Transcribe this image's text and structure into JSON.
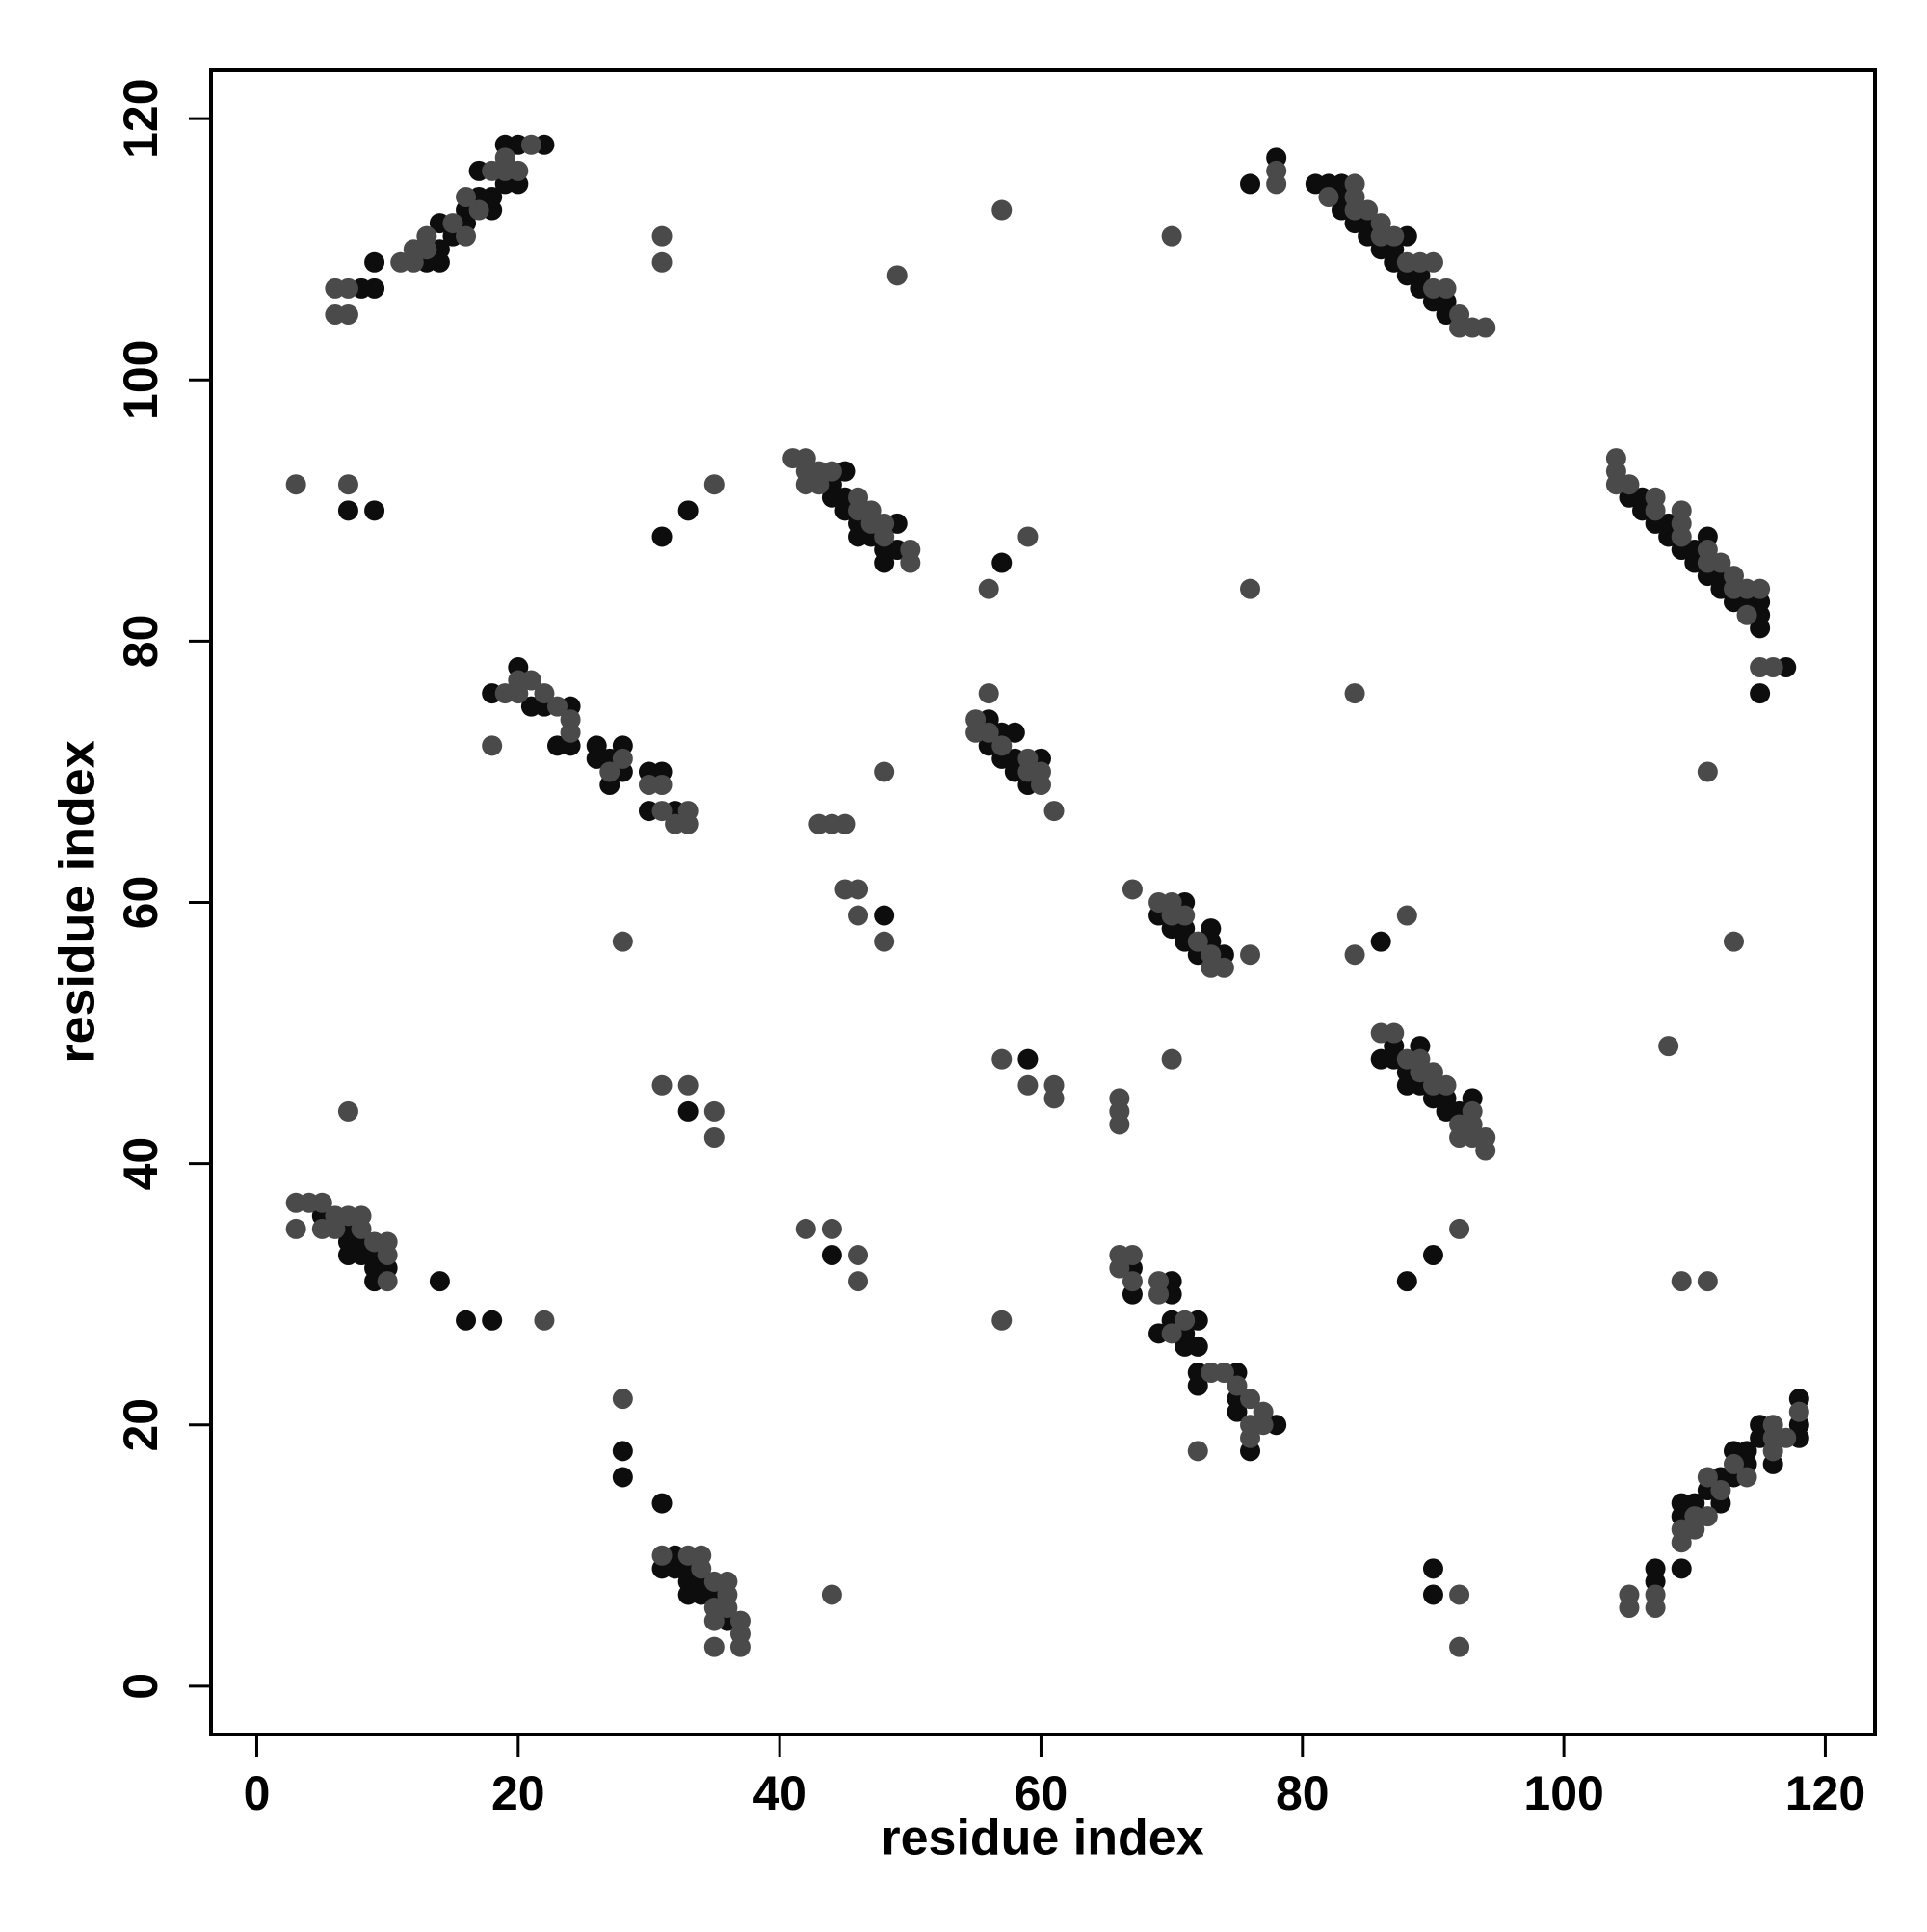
{
  "chart_data": {
    "type": "scatter",
    "x_label": "residue index",
    "y_label": "residue index",
    "xlim": [
      -3.5,
      123.8
    ],
    "ylim": [
      -3.7,
      123.7
    ],
    "xticks": [
      0,
      20,
      40,
      60,
      80,
      100,
      120
    ],
    "yticks": [
      0,
      20,
      40,
      60,
      80,
      100,
      120
    ],
    "series": [
      {
        "color": "#0d0d0d",
        "x": [
          8,
          9,
          9,
          13,
          14,
          14,
          14,
          15,
          16,
          16,
          17,
          17,
          18,
          18,
          19,
          19,
          20,
          20,
          22,
          81,
          82,
          83,
          83,
          83,
          84,
          85,
          85,
          86,
          87,
          87,
          88,
          88,
          89,
          89,
          90,
          91,
          91,
          76,
          78,
          44,
          44,
          45,
          45,
          46,
          46,
          47,
          48,
          48,
          49,
          49,
          45,
          18,
          20,
          21,
          22,
          23,
          24,
          24,
          26,
          26,
          27,
          27,
          28,
          28,
          30,
          30,
          31,
          32,
          56,
          56,
          57,
          57,
          58,
          58,
          58,
          59,
          60,
          5,
          7,
          7,
          7,
          8,
          8,
          9,
          9,
          9,
          10,
          7,
          9,
          31,
          33,
          57,
          14,
          16,
          18,
          33,
          48,
          107,
          107,
          109,
          109,
          109,
          110,
          112,
          111,
          112,
          113,
          114,
          116,
          113,
          114,
          115,
          118,
          115,
          118,
          118,
          115,
          115,
          115,
          114,
          113,
          112,
          112,
          111,
          110,
          110,
          109,
          111,
          108,
          108,
          107,
          106,
          106,
          105,
          115,
          117,
          92,
          91,
          91,
          90,
          89,
          88,
          88,
          87,
          86,
          89,
          87,
          93,
          76,
          78,
          75,
          75,
          72,
          72,
          75,
          72,
          71,
          71,
          69,
          72,
          70,
          70,
          67,
          70,
          67,
          74,
          72,
          73,
          71,
          73,
          71,
          70,
          69,
          71,
          36,
          35,
          34,
          33,
          34,
          33,
          33,
          32,
          31,
          32,
          90,
          90,
          88,
          90,
          86,
          31,
          28,
          28,
          44,
          59
        ],
        "values": [
          107,
          107,
          109,
          109,
          109,
          110,
          112,
          111,
          112,
          113,
          114,
          116,
          113,
          114,
          115,
          118,
          115,
          118,
          118,
          115,
          115,
          115,
          114,
          113,
          112,
          112,
          111,
          110,
          110,
          109,
          111,
          108,
          108,
          107,
          106,
          106,
          105,
          115,
          117,
          92,
          91,
          91,
          90,
          89,
          88,
          88,
          87,
          86,
          89,
          87,
          93,
          76,
          78,
          75,
          75,
          72,
          72,
          75,
          72,
          71,
          71,
          69,
          72,
          70,
          70,
          67,
          70,
          67,
          74,
          72,
          73,
          71,
          73,
          71,
          70,
          69,
          71,
          36,
          35,
          34,
          33,
          34,
          33,
          33,
          32,
          31,
          32,
          90,
          90,
          88,
          90,
          86,
          31,
          28,
          28,
          44,
          59,
          8,
          9,
          9,
          13,
          14,
          14,
          14,
          15,
          16,
          16,
          17,
          17,
          18,
          18,
          19,
          19,
          20,
          20,
          22,
          81,
          82,
          83,
          83,
          83,
          84,
          85,
          85,
          86,
          87,
          87,
          88,
          88,
          89,
          89,
          90,
          91,
          91,
          76,
          78,
          44,
          44,
          45,
          45,
          46,
          46,
          47,
          48,
          48,
          49,
          49,
          45,
          18,
          20,
          21,
          22,
          23,
          24,
          24,
          26,
          26,
          27,
          27,
          28,
          28,
          30,
          30,
          31,
          32,
          56,
          56,
          57,
          57,
          58,
          58,
          58,
          59,
          60,
          5,
          7,
          7,
          7,
          8,
          8,
          9,
          9,
          9,
          10,
          7,
          9,
          31,
          33,
          57,
          14,
          16,
          18,
          33,
          48
        ]
      },
      {
        "color": "#4a4a4a",
        "x": [
          6,
          7,
          6,
          7,
          11,
          12,
          12,
          13,
          13,
          15,
          16,
          16,
          17,
          18,
          19,
          19,
          20,
          21,
          84,
          82,
          84,
          84,
          85,
          86,
          86,
          87,
          88,
          89,
          90,
          90,
          91,
          92,
          92,
          93,
          94,
          78,
          78,
          41,
          42,
          42,
          43,
          44,
          42,
          43,
          46,
          46,
          47,
          47,
          48,
          48,
          50,
          50,
          19,
          20,
          20,
          21,
          22,
          23,
          24,
          24,
          27,
          28,
          30,
          31,
          31,
          32,
          33,
          33,
          18,
          55,
          55,
          56,
          56,
          57,
          59,
          59,
          60,
          60,
          61,
          3,
          4,
          5,
          3,
          5,
          6,
          6,
          7,
          8,
          8,
          9,
          10,
          10,
          10,
          3,
          7,
          35,
          31,
          31,
          49,
          57,
          70,
          56,
          59,
          76,
          7,
          22,
          28,
          31,
          33,
          35,
          35,
          43,
          44,
          45,
          45,
          46,
          46,
          48,
          48,
          105,
          105,
          107,
          107,
          109,
          109,
          110,
          110,
          111,
          112,
          111,
          114,
          113,
          116,
          116,
          117,
          116,
          118,
          115,
          114,
          114,
          113,
          113,
          112,
          111,
          111,
          109,
          109,
          109,
          107,
          107,
          105,
          104,
          104,
          104,
          115,
          116,
          94,
          94,
          93,
          93,
          93,
          92,
          92,
          91,
          90,
          90,
          89,
          89,
          88,
          87,
          86,
          76,
          76,
          77,
          77,
          76,
          75,
          74,
          73,
          70,
          71,
          69,
          69,
          67,
          66,
          67,
          66,
          72,
          74,
          73,
          76,
          73,
          72,
          71,
          70,
          70,
          69,
          67,
          37,
          37,
          37,
          35,
          35,
          36,
          35,
          36,
          36,
          35,
          34,
          34,
          33,
          31,
          92,
          92,
          92,
          111,
          109,
          108,
          113,
          111,
          84,
          88,
          84,
          44,
          28,
          57,
          46,
          46,
          44,
          42,
          66,
          66,
          66,
          61,
          61,
          59,
          57,
          70
        ],
        "values": [
          105,
          105,
          107,
          107,
          109,
          109,
          110,
          110,
          111,
          112,
          111,
          114,
          113,
          116,
          116,
          117,
          116,
          118,
          115,
          114,
          114,
          113,
          113,
          112,
          111,
          111,
          109,
          109,
          109,
          107,
          107,
          105,
          104,
          104,
          104,
          115,
          116,
          94,
          94,
          93,
          93,
          93,
          92,
          92,
          91,
          90,
          90,
          89,
          89,
          88,
          87,
          86,
          76,
          76,
          77,
          77,
          76,
          75,
          74,
          73,
          70,
          71,
          69,
          69,
          67,
          66,
          67,
          66,
          72,
          74,
          73,
          76,
          73,
          72,
          71,
          70,
          70,
          69,
          67,
          37,
          37,
          37,
          35,
          35,
          36,
          35,
          36,
          36,
          35,
          34,
          34,
          33,
          31,
          92,
          92,
          92,
          111,
          109,
          108,
          113,
          111,
          84,
          88,
          84,
          44,
          28,
          57,
          46,
          46,
          44,
          42,
          66,
          66,
          66,
          61,
          61,
          59,
          57,
          70,
          6,
          7,
          6,
          7,
          11,
          12,
          12,
          13,
          13,
          15,
          16,
          16,
          17,
          18,
          19,
          19,
          20,
          21,
          84,
          82,
          84,
          84,
          85,
          86,
          86,
          87,
          88,
          89,
          90,
          90,
          91,
          92,
          92,
          93,
          94,
          78,
          78,
          41,
          42,
          42,
          43,
          44,
          42,
          43,
          46,
          46,
          47,
          47,
          48,
          48,
          50,
          50,
          19,
          20,
          20,
          21,
          22,
          23,
          24,
          24,
          27,
          28,
          30,
          31,
          31,
          32,
          33,
          33,
          18,
          55,
          55,
          56,
          56,
          57,
          59,
          59,
          60,
          60,
          61,
          3,
          4,
          5,
          3,
          5,
          6,
          6,
          7,
          8,
          8,
          9,
          10,
          10,
          10,
          3,
          7,
          35,
          31,
          31,
          49,
          57,
          70,
          56,
          59,
          76,
          7,
          22,
          28,
          31,
          33,
          35,
          35,
          43,
          44,
          45,
          45,
          46,
          46,
          48,
          48
        ]
      }
    ]
  }
}
